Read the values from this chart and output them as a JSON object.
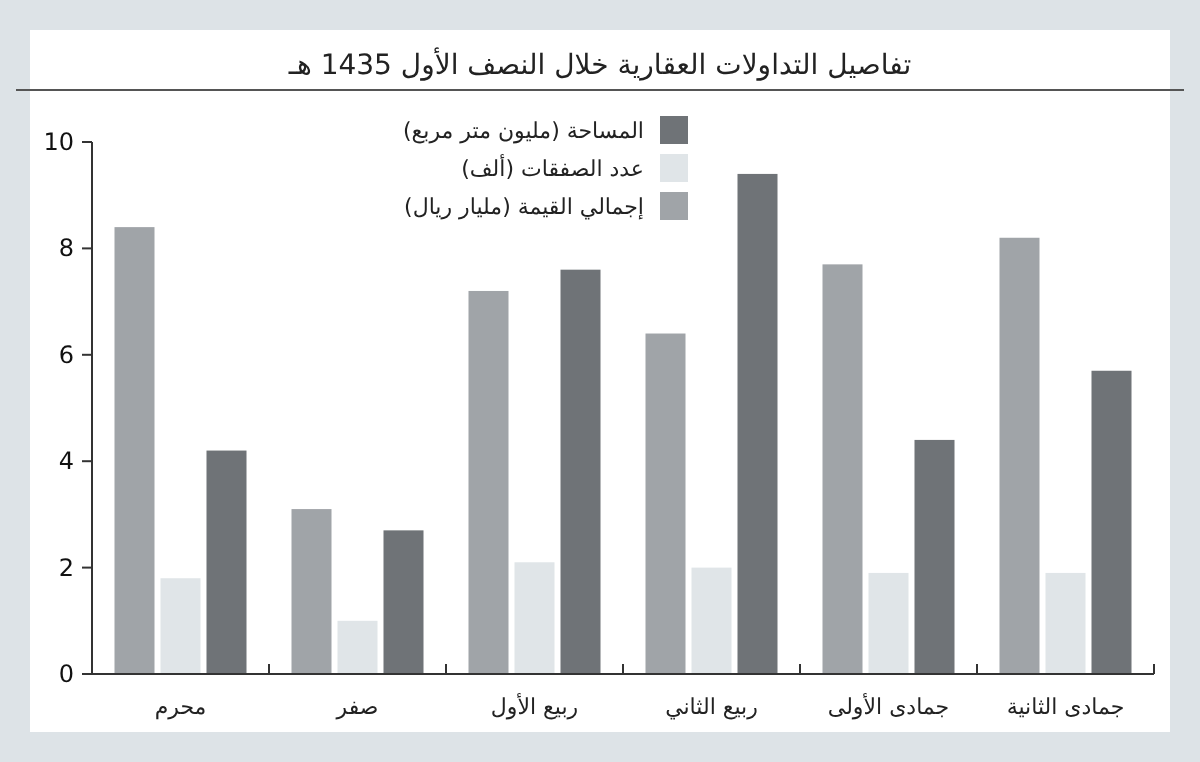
{
  "chart_data": {
    "type": "bar",
    "title": "تفاصيل التداولات العقارية خلال النصف الأول 1435 هـ",
    "categories": [
      "محرم",
      "صفر",
      "ربيع الأول",
      "ربيع الثاني",
      "جمادى الأولى",
      "جمادى الثانية"
    ],
    "series": [
      {
        "name": "إجمالي القيمة (مليار ريال)",
        "color": "#a0a4a8",
        "values": [
          8.4,
          3.1,
          7.2,
          6.4,
          7.7,
          8.2
        ]
      },
      {
        "name": "عدد الصفقات (ألف)",
        "color": "#e0e5e8",
        "values": [
          1.8,
          1.0,
          2.1,
          2.0,
          1.9,
          1.9
        ]
      },
      {
        "name": "المساحة (مليون متر مربع)",
        "color": "#6f7377",
        "values": [
          4.2,
          2.7,
          7.6,
          9.4,
          4.4,
          5.7
        ]
      }
    ],
    "ylim": [
      0,
      10
    ],
    "yticks": [
      0,
      2,
      4,
      6,
      8,
      10
    ],
    "grid": false,
    "legend": "top"
  }
}
